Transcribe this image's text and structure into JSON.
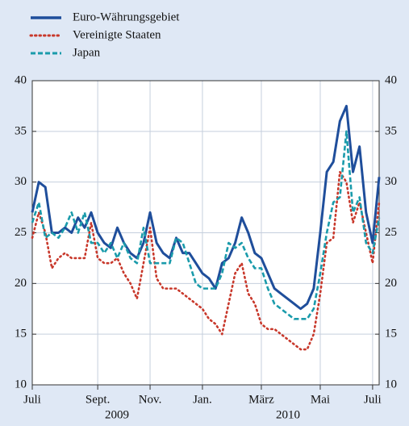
{
  "chart_data": {
    "type": "line",
    "categories": [
      "Juli",
      null,
      null,
      null,
      null,
      null,
      null,
      null,
      null,
      null,
      "Sept.",
      null,
      null,
      null,
      null,
      null,
      null,
      null,
      "Nov.",
      null,
      null,
      null,
      null,
      null,
      null,
      null,
      "Jan.",
      null,
      null,
      null,
      null,
      null,
      null,
      null,
      null,
      "März",
      null,
      null,
      null,
      null,
      null,
      null,
      null,
      null,
      "Mai",
      null,
      null,
      null,
      null,
      null,
      null,
      null,
      "Juli",
      null
    ],
    "x_group_labels": [
      "2009",
      "2010"
    ],
    "series": [
      {
        "name": "Euro-Währungsgebiet",
        "color": "#1f4e9b",
        "style": "solid",
        "values": [
          27,
          30,
          29.5,
          25,
          25,
          25.5,
          25,
          26.5,
          25.5,
          27,
          25,
          24,
          23.5,
          25.5,
          24,
          23,
          22.5,
          24,
          27,
          24,
          23,
          22.5,
          24.5,
          23,
          23,
          22,
          21,
          20.5,
          19.5,
          22,
          22.5,
          24,
          26.5,
          25,
          23,
          22.5,
          21,
          19.5,
          19,
          18.5,
          18,
          17.5,
          18,
          19.5,
          25,
          31,
          32,
          36,
          37.5,
          31,
          33.5,
          27,
          24,
          30.5
        ]
      },
      {
        "name": "Vereinigte Staaten",
        "color": "#c8382b",
        "style": "dotted",
        "values": [
          24.5,
          27,
          25,
          21.5,
          22.5,
          23,
          22.5,
          22.5,
          22.5,
          26,
          22.5,
          22,
          22,
          22.5,
          21,
          20,
          18.5,
          22,
          25.5,
          20.5,
          19.5,
          19.5,
          19.5,
          19,
          18.5,
          18,
          17.5,
          16.5,
          16,
          15,
          18,
          21,
          22,
          19,
          18,
          16,
          15.5,
          15.5,
          15,
          14.5,
          14,
          13.5,
          13.5,
          15,
          19,
          24,
          24.5,
          31,
          30,
          26,
          28,
          25,
          22,
          28
        ]
      },
      {
        "name": "Japan",
        "color": "#1a9bab",
        "style": "dashed",
        "values": [
          26,
          28,
          24.5,
          25,
          24.5,
          25.5,
          27,
          25,
          27,
          24,
          24,
          23,
          24,
          22.5,
          24,
          22.5,
          22,
          25.5,
          22,
          22,
          22,
          22,
          24.5,
          24,
          22,
          20,
          19.5,
          19.5,
          19.5,
          21,
          24,
          23.5,
          24,
          22.5,
          21.5,
          21.5,
          19.5,
          18,
          17.5,
          17,
          16.5,
          16.5,
          16.5,
          17.5,
          21,
          25,
          28,
          28.5,
          35,
          27,
          28.5,
          24,
          23,
          26.5
        ]
      }
    ],
    "ylim": [
      10,
      40
    ],
    "yticks": [
      10,
      15,
      20,
      25,
      30,
      35,
      40
    ],
    "y2lim": [
      10,
      40
    ],
    "y2ticks": [
      10,
      15,
      20,
      25,
      30,
      35,
      40
    ],
    "grid": true
  }
}
